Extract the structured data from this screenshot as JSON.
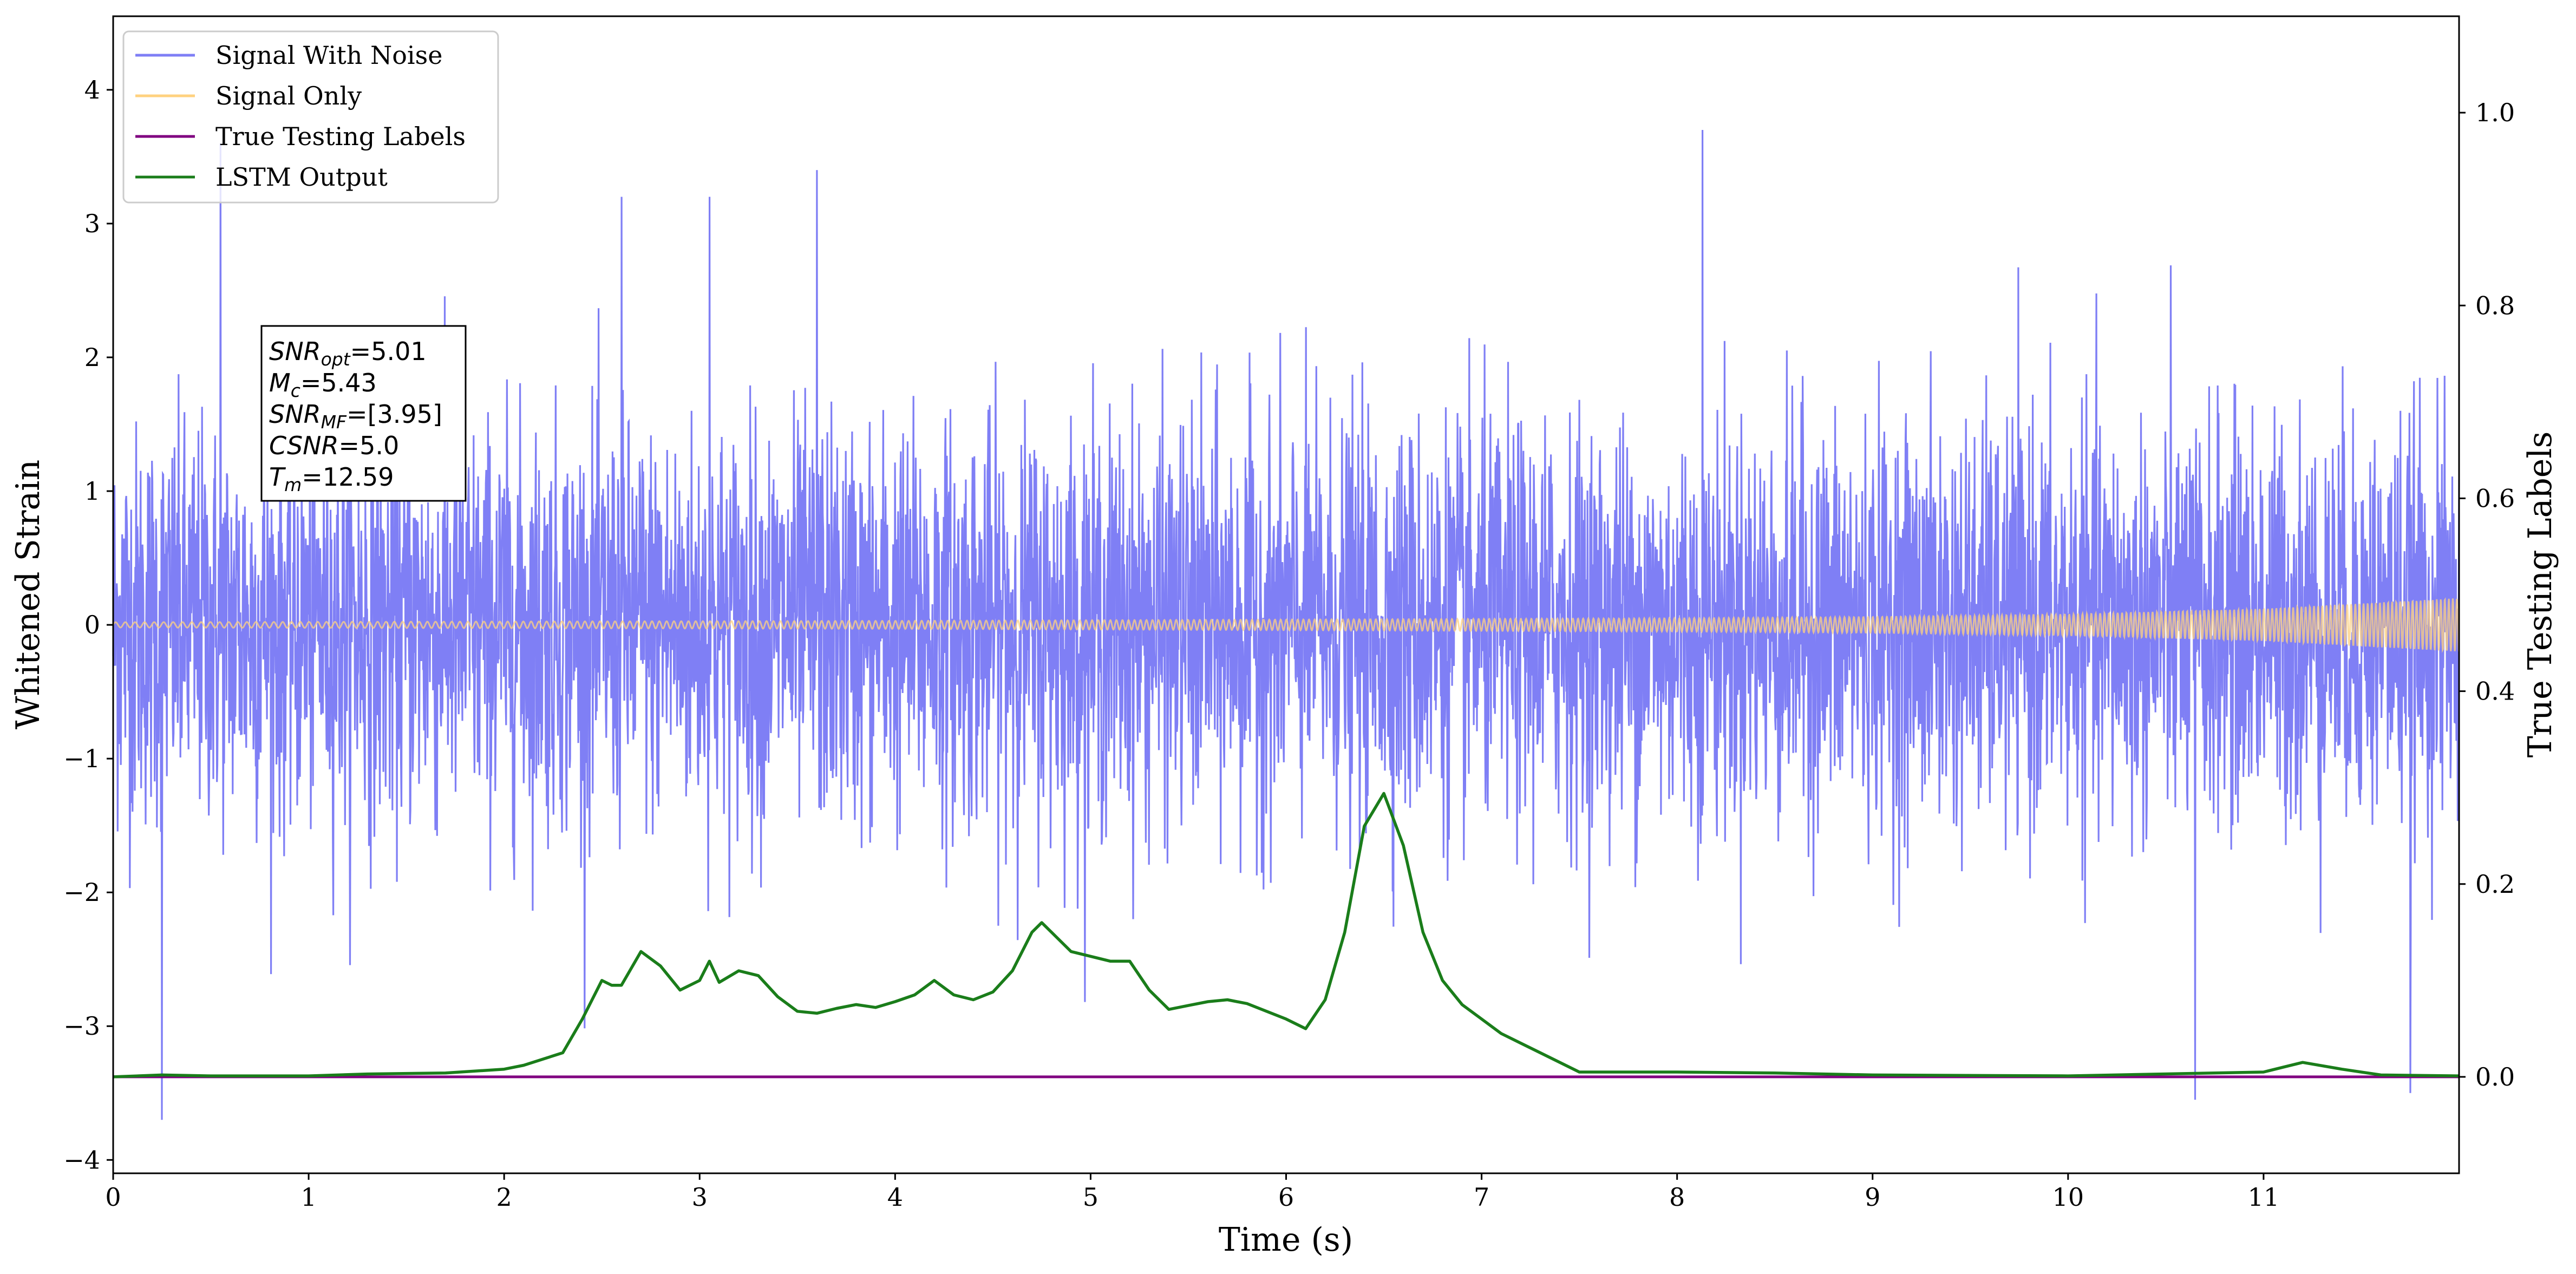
{
  "chart_data": {
    "type": "line",
    "xlabel": "Time (s)",
    "ylabel_left": "Whitened Strain",
    "ylabel_right": "True Testing Labels",
    "xlim": [
      0,
      12
    ],
    "ylim_left": [
      -4.1,
      4.55
    ],
    "ylim_right": [
      -0.1,
      1.1
    ],
    "x_ticks": [
      "0",
      "1",
      "2",
      "3",
      "4",
      "5",
      "6",
      "7",
      "8",
      "9",
      "10",
      "11"
    ],
    "y_left_ticks": [
      "−4",
      "−3",
      "−2",
      "−1",
      "0",
      "1",
      "2",
      "3",
      "4"
    ],
    "y_right_ticks": [
      "0.0",
      "0.2",
      "0.4",
      "0.6",
      "0.8",
      "1.0"
    ],
    "legend": {
      "placement": "top-left",
      "entries": [
        {
          "label": "Signal With Noise",
          "color": "#7f7ff5"
        },
        {
          "label": "Signal Only",
          "color": "#ffd27f"
        },
        {
          "label": "True Testing Labels",
          "color": "#800080"
        },
        {
          "label": "LSTM Output",
          "color": "#1a7d1a"
        }
      ]
    },
    "annotation": {
      "placement": "upper-left",
      "lines": [
        {
          "base": "SNR",
          "sub": "opt",
          "value": "=5.01"
        },
        {
          "base": "M",
          "sub": "c",
          "value": "=5.43"
        },
        {
          "base": "SNR",
          "sub": "MF",
          "value": "=[3.95]"
        },
        {
          "base": "CSNR",
          "sub": "",
          "value": "=5.0"
        },
        {
          "base": "T",
          "sub": "m",
          "value": "=12.59"
        }
      ]
    },
    "series": [
      {
        "name": "Signal With Noise",
        "axis": "left",
        "color": "#7f7ff5",
        "approx_std": 0.75,
        "notable_peaks": [
          [
            0.25,
            -3.7
          ],
          [
            0.55,
            3.6
          ],
          [
            3.6,
            3.4
          ],
          [
            8.13,
            3.7
          ],
          [
            10.65,
            -3.55
          ],
          [
            11.75,
            -3.5
          ],
          [
            2.6,
            3.2
          ],
          [
            3.05,
            3.2
          ]
        ]
      },
      {
        "name": "Signal Only",
        "axis": "left",
        "color": "#ffd27f",
        "envelope": [
          [
            0,
            0.02
          ],
          [
            2,
            0.025
          ],
          [
            4,
            0.03
          ],
          [
            6,
            0.04
          ],
          [
            8,
            0.05
          ],
          [
            9,
            0.06
          ],
          [
            10,
            0.08
          ],
          [
            11,
            0.12
          ],
          [
            12,
            0.2
          ]
        ]
      },
      {
        "name": "True Testing Labels",
        "axis": "right",
        "color": "#800080",
        "x": [
          0,
          12
        ],
        "y": [
          0,
          0
        ]
      },
      {
        "name": "LSTM Output",
        "axis": "right",
        "color": "#1a7d1a",
        "x": [
          0,
          0.25,
          0.5,
          1.0,
          1.3,
          1.7,
          2.0,
          2.1,
          2.3,
          2.4,
          2.5,
          2.55,
          2.6,
          2.7,
          2.8,
          2.9,
          3.0,
          3.05,
          3.1,
          3.2,
          3.3,
          3.4,
          3.5,
          3.6,
          3.7,
          3.8,
          3.9,
          4.0,
          4.1,
          4.2,
          4.3,
          4.4,
          4.5,
          4.6,
          4.7,
          4.75,
          4.8,
          4.9,
          5.0,
          5.1,
          5.2,
          5.3,
          5.4,
          5.5,
          5.6,
          5.7,
          5.8,
          5.9,
          6.0,
          6.1,
          6.2,
          6.3,
          6.4,
          6.5,
          6.6,
          6.7,
          6.8,
          6.9,
          7.0,
          7.1,
          7.2,
          7.3,
          7.5,
          8.0,
          8.5,
          9.0,
          10.0,
          11.0,
          11.1,
          11.2,
          11.4,
          11.6,
          12.0
        ],
        "y": [
          0.0,
          0.002,
          0.001,
          0.001,
          0.003,
          0.004,
          0.008,
          0.012,
          0.025,
          0.06,
          0.1,
          0.095,
          0.095,
          0.13,
          0.115,
          0.09,
          0.1,
          0.12,
          0.098,
          0.11,
          0.105,
          0.083,
          0.068,
          0.066,
          0.071,
          0.075,
          0.072,
          0.078,
          0.085,
          0.1,
          0.085,
          0.08,
          0.088,
          0.11,
          0.15,
          0.16,
          0.15,
          0.13,
          0.125,
          0.12,
          0.12,
          0.09,
          0.07,
          0.074,
          0.078,
          0.08,
          0.076,
          0.068,
          0.06,
          0.05,
          0.08,
          0.15,
          0.26,
          0.294,
          0.24,
          0.15,
          0.1,
          0.075,
          0.06,
          0.045,
          0.035,
          0.025,
          0.005,
          0.005,
          0.004,
          0.002,
          0.001,
          0.005,
          0.01,
          0.015,
          0.008,
          0.002,
          0.001
        ]
      }
    ]
  }
}
